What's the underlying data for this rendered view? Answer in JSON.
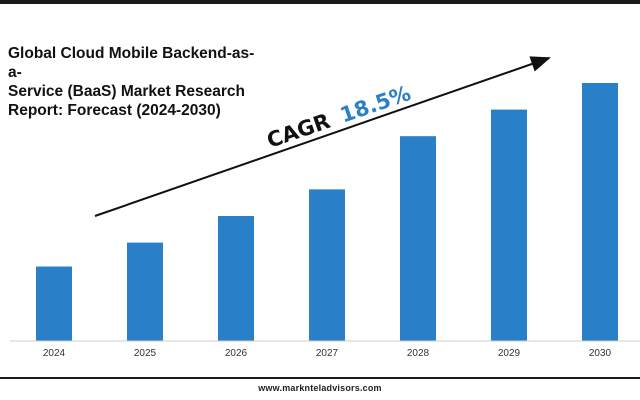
{
  "title": "Global Cloud Mobile Backend-as-a-\nService (BaaS) Market Research\nReport: Forecast (2024-2030)",
  "cagr": {
    "label": "CAGR",
    "value": "18.5%"
  },
  "footer": "www.marknteladvisors.com",
  "colors": {
    "bar": "#2a80c8",
    "accent": "#2a80c8"
  },
  "chart_data": {
    "type": "bar",
    "title": "Global Cloud Mobile Backend-as-a-Service (BaaS) Market Research Report: Forecast (2024-2030)",
    "categories": [
      "2024",
      "2025",
      "2026",
      "2027",
      "2028",
      "2029",
      "2030"
    ],
    "values": [
      28,
      37,
      47,
      57,
      77,
      87,
      97
    ],
    "ylim": [
      0,
      100
    ],
    "grid": false,
    "legend": "none",
    "annotations": [
      "CAGR 18.5%"
    ]
  }
}
